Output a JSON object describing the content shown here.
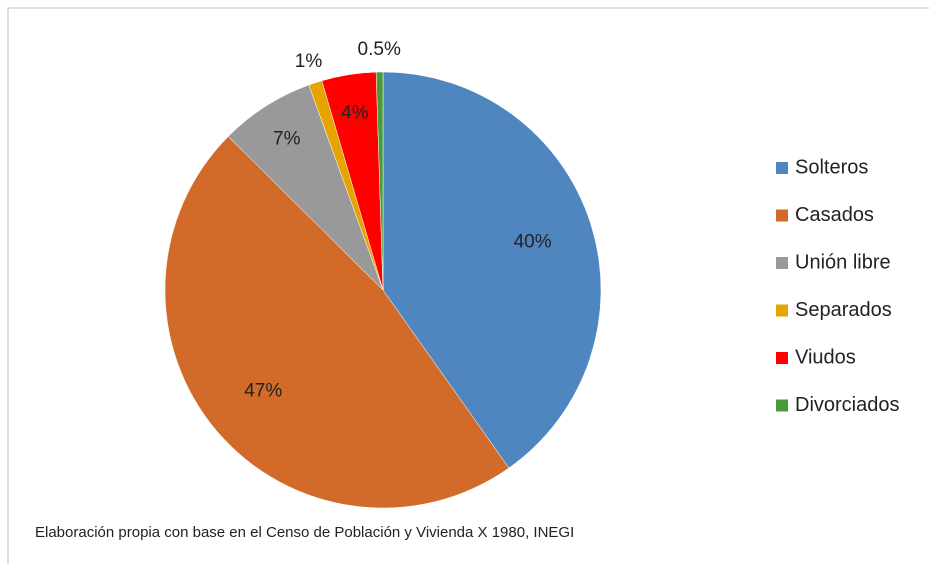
{
  "chart_data": {
    "type": "pie",
    "categories": [
      "Solteros",
      "Casados",
      "Unión libre",
      "Separados",
      "Viudos",
      "Divorciados"
    ],
    "values": [
      40,
      47,
      7,
      1,
      4,
      0.5
    ],
    "value_labels": [
      "40%",
      "47%",
      "7%",
      "1%",
      "4%",
      "0.5%"
    ],
    "colors": [
      "#4f86bf",
      "#d26b29",
      "#999999",
      "#e6a400",
      "#ff0000",
      "#4a9a3c"
    ],
    "legend": "right",
    "source": "Elaboración propia con base en el Censo de Población y Vivienda X 1980, INEGI"
  }
}
